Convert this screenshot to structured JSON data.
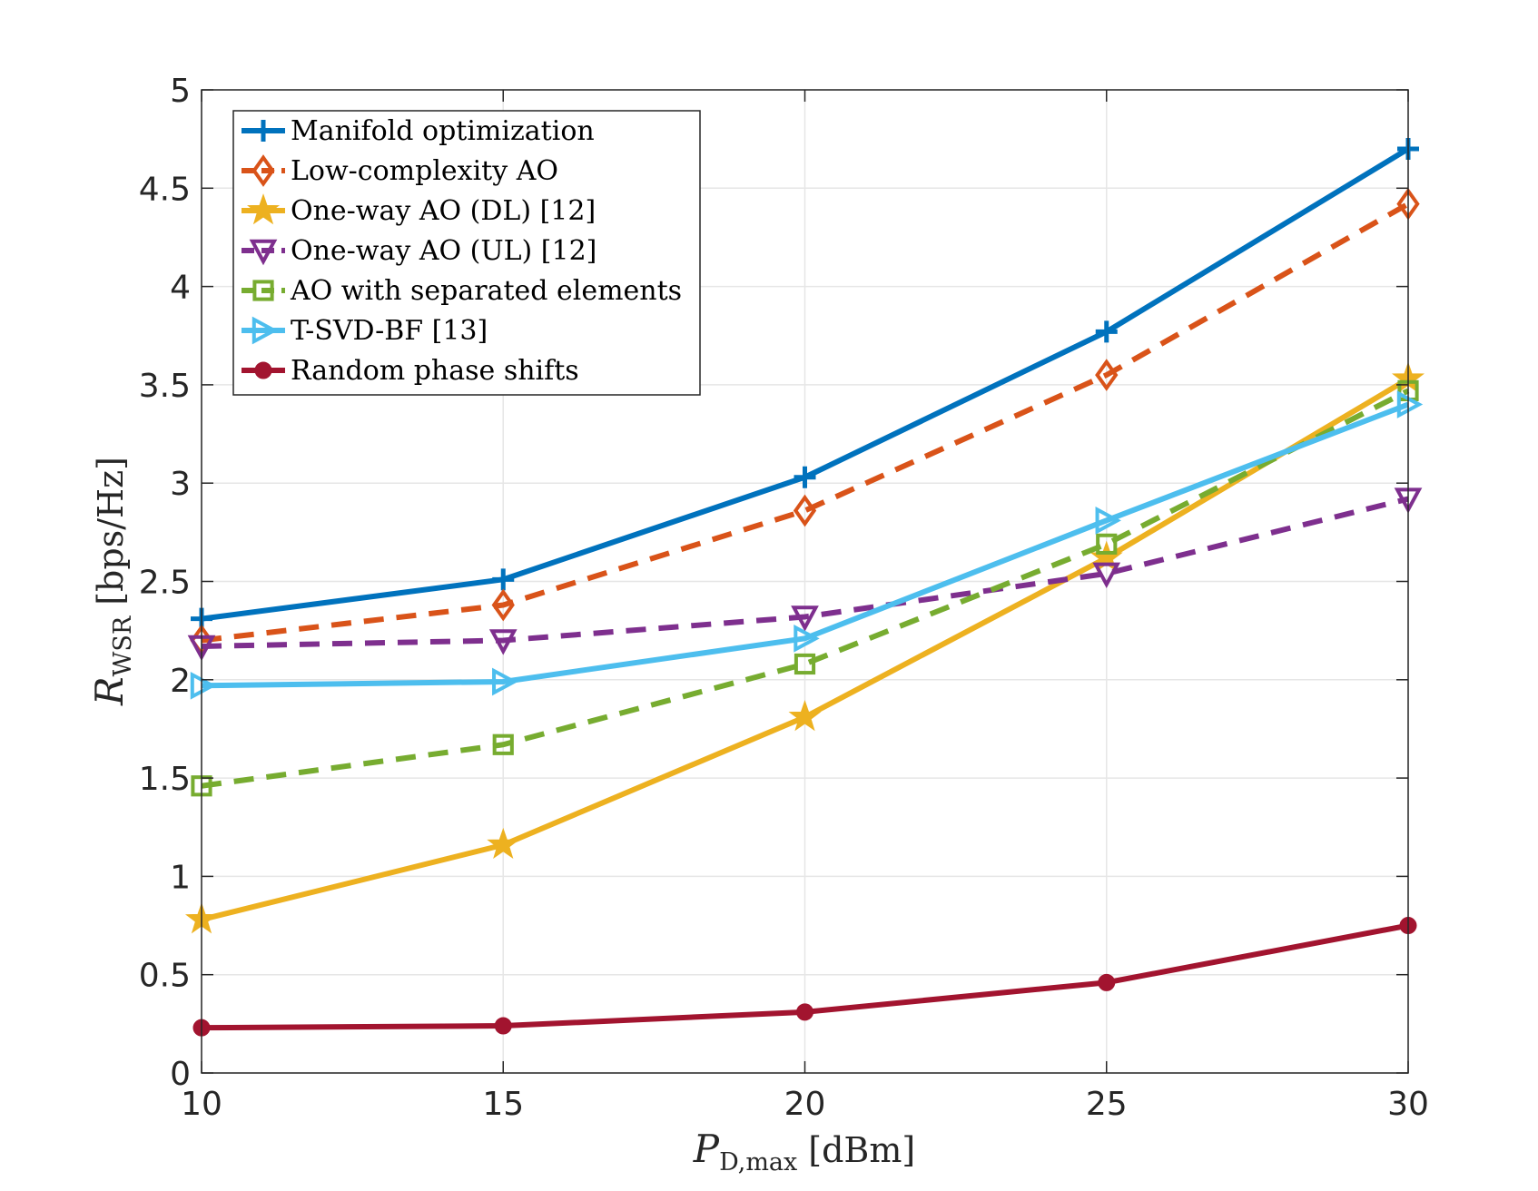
{
  "chart_data": {
    "type": "line",
    "x": [
      10,
      15,
      20,
      25,
      30
    ],
    "xlim": [
      10,
      30
    ],
    "ylim": [
      0,
      5
    ],
    "xticks": [
      "10",
      "15",
      "20",
      "25",
      "30"
    ],
    "yticks": [
      "0",
      "0.5",
      "1",
      "1.5",
      "2",
      "2.5",
      "3",
      "3.5",
      "4",
      "4.5",
      "5"
    ],
    "xlabel": {
      "symbol": "P",
      "subscript": "D,max",
      "unit": "[dBm]"
    },
    "ylabel": {
      "symbol": "R",
      "subscript": "WSR",
      "unit": "[bps/Hz]"
    },
    "grid": true,
    "legend_position": "top-left",
    "series": [
      {
        "name": "Manifold optimization",
        "values": [
          2.31,
          2.51,
          3.03,
          3.77,
          4.7
        ],
        "color": "#0072BD",
        "dash": "solid",
        "marker": "plus"
      },
      {
        "name": "Low-complexity AO",
        "values": [
          2.2,
          2.38,
          2.86,
          3.55,
          4.42
        ],
        "color": "#D95319",
        "dash": "dashed",
        "marker": "diamond"
      },
      {
        "name": "One-way AO (DL) [12]",
        "values": [
          0.78,
          1.16,
          1.81,
          2.62,
          3.53
        ],
        "color": "#EDB120",
        "dash": "solid",
        "marker": "star"
      },
      {
        "name": "One-way AO (UL) [12]",
        "values": [
          2.17,
          2.2,
          2.32,
          2.54,
          2.92
        ],
        "color": "#7E2F8E",
        "dash": "dashed",
        "marker": "triangle-down"
      },
      {
        "name": "AO with separated elements",
        "values": [
          1.46,
          1.67,
          2.08,
          2.69,
          3.47
        ],
        "color": "#77AC30",
        "dash": "dashed",
        "marker": "square"
      },
      {
        "name": "T-SVD-BF [13]",
        "values": [
          1.97,
          1.99,
          2.21,
          2.81,
          3.4
        ],
        "color": "#4DBEEE",
        "dash": "solid",
        "marker": "triangle-right"
      },
      {
        "name": "Random phase shifts",
        "values": [
          0.23,
          0.24,
          0.31,
          0.46,
          0.75
        ],
        "color": "#A2142F",
        "dash": "solid",
        "marker": "circle"
      }
    ]
  }
}
